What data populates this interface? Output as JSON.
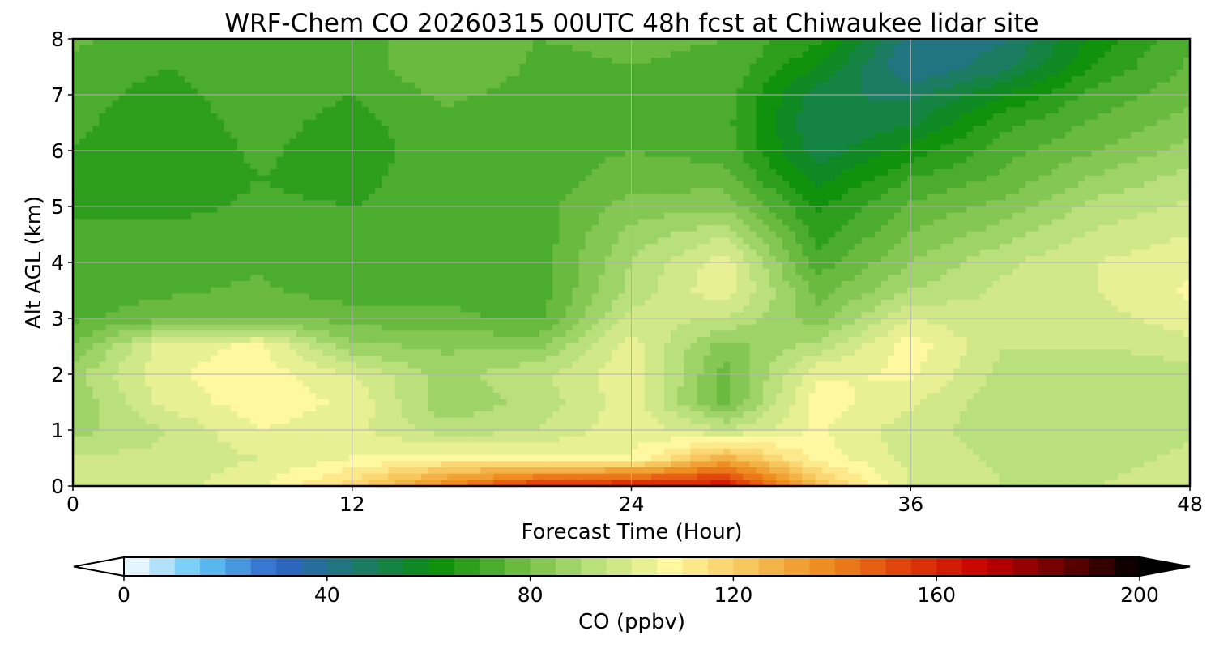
{
  "chart_data": {
    "type": "heatmap",
    "title": "WRF-Chem CO  20260315 00UTC 48h fcst at Chiwaukee lidar site",
    "xlabel": "Forecast Time (Hour)",
    "ylabel": "Alt AGL (km)",
    "xlim": [
      0,
      48
    ],
    "ylim": [
      0,
      8
    ],
    "xticks": [
      "0",
      "12",
      "24",
      "36",
      "48"
    ],
    "yticks": [
      "0",
      "1",
      "2",
      "3",
      "4",
      "5",
      "6",
      "7",
      "8"
    ],
    "grid": true,
    "colorbar": {
      "label": "CO  (ppbv)",
      "range": [
        0,
        200
      ],
      "ticks": [
        "0",
        "40",
        "80",
        "120",
        "160",
        "200"
      ],
      "extend": "both",
      "orientation": "horizontal",
      "colors": [
        "#ffffff",
        "#5ec4f5",
        "#2f64c8",
        "#1d7a6a",
        "#0a8f0a",
        "#66b83c",
        "#b8e07a",
        "#fff8a0",
        "#f7c45a",
        "#ee8a1c",
        "#e0400c",
        "#c80000",
        "#6a0000",
        "#000000"
      ]
    },
    "x": [
      0,
      4,
      8,
      12,
      16,
      20,
      24,
      28,
      32,
      36,
      40,
      44,
      48
    ],
    "y": [
      0,
      0.5,
      1,
      1.5,
      2,
      2.5,
      3,
      3.5,
      4,
      4.5,
      5,
      5.5,
      6,
      6.5,
      7,
      7.5,
      8
    ],
    "z": [
      [
        98,
        98,
        104,
        118,
        140,
        158,
        162,
        165,
        125,
        100,
        95,
        95,
        98
      ],
      [
        96,
        96,
        100,
        105,
        108,
        106,
        105,
        128,
        108,
        98,
        94,
        93,
        96
      ],
      [
        88,
        95,
        105,
        102,
        92,
        95,
        104,
        95,
        106,
        97,
        92,
        91,
        94
      ],
      [
        86,
        102,
        108,
        104,
        86,
        92,
        103,
        78,
        108,
        101,
        91,
        90,
        92
      ],
      [
        88,
        104,
        108,
        100,
        88,
        94,
        104,
        78,
        104,
        106,
        93,
        90,
        93
      ],
      [
        80,
        103,
        106,
        86,
        84,
        84,
        103,
        82,
        92,
        108,
        95,
        95,
        98
      ],
      [
        74,
        78,
        80,
        78,
        76,
        74,
        97,
        95,
        82,
        100,
        96,
        98,
        103
      ],
      [
        72,
        74,
        76,
        72,
        74,
        72,
        92,
        104,
        78,
        90,
        96,
        100,
        106
      ],
      [
        71,
        73,
        74,
        70,
        73,
        72,
        90,
        103,
        72,
        85,
        94,
        100,
        104
      ],
      [
        70,
        72,
        73,
        70,
        72,
        72,
        87,
        94,
        68,
        80,
        88,
        96,
        100
      ],
      [
        70,
        68,
        71,
        70,
        72,
        73,
        82,
        84,
        64,
        76,
        82,
        92,
        96
      ],
      [
        69,
        66,
        70,
        68,
        74,
        72,
        78,
        77,
        58,
        70,
        76,
        86,
        92
      ],
      [
        70,
        66,
        71,
        67,
        73,
        72,
        75,
        73,
        52,
        62,
        73,
        80,
        87
      ],
      [
        71,
        67,
        72,
        68,
        74,
        72,
        74,
        72,
        50,
        54,
        68,
        76,
        82
      ],
      [
        72,
        68,
        73,
        70,
        76,
        73,
        74,
        73,
        52,
        48,
        60,
        72,
        78
      ],
      [
        74,
        70,
        74,
        72,
        80,
        74,
        75,
        74,
        60,
        40,
        48,
        66,
        76
      ],
      [
        76,
        72,
        75,
        73,
        78,
        75,
        76,
        75,
        66,
        42,
        44,
        62,
        74
      ]
    ]
  }
}
